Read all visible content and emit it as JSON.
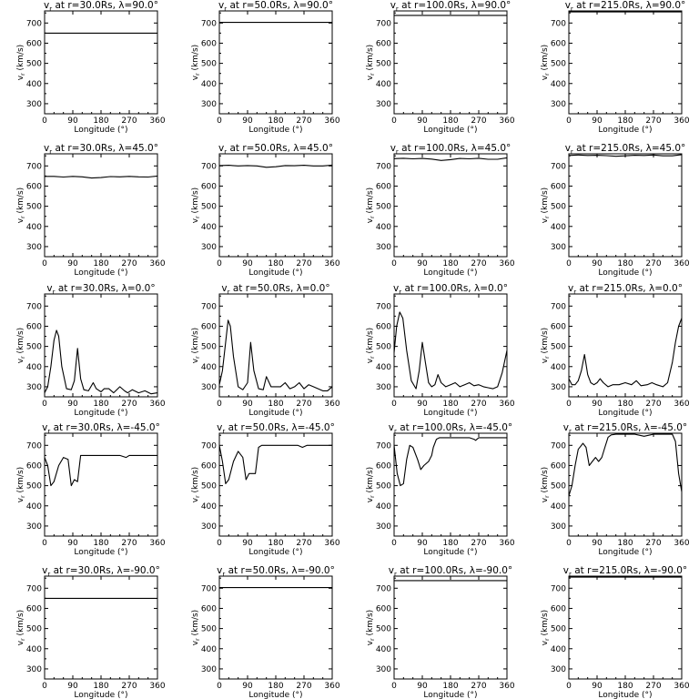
{
  "axis_common": {
    "xlabel": "Longitude (°)",
    "ylabel": "v",
    "ylabel_sub": "r",
    "ylabel_unit": " (km/s)",
    "xlim": [
      0,
      360
    ],
    "ylim": [
      250,
      760
    ],
    "xticks": [
      "0",
      "90",
      "180",
      "270",
      "360"
    ],
    "yticks": [
      "300",
      "400",
      "500",
      "600",
      "700"
    ]
  },
  "chart_data": [
    {
      "type": "line",
      "title": "v",
      "title_sub": "r",
      "title_rest": " at r=30.0Rs, λ=90.0°",
      "x": [
        0,
        360
      ],
      "series": [
        {
          "values": [
            650,
            650
          ]
        }
      ]
    },
    {
      "type": "line",
      "title": "v",
      "title_sub": "r",
      "title_rest": " at r=50.0Rs, λ=90.0°",
      "x": [
        0,
        360
      ],
      "series": [
        {
          "values": [
            703,
            703
          ]
        }
      ]
    },
    {
      "type": "line",
      "title": "v",
      "title_sub": "r",
      "title_rest": " at r=100.0Rs, λ=90.0°",
      "x": [
        0,
        360
      ],
      "series": [
        {
          "values": [
            738,
            738
          ]
        }
      ]
    },
    {
      "type": "line",
      "title": "v",
      "title_sub": "r",
      "title_rest": " at r=215.0Rs, λ=90.0°",
      "x": [
        0,
        360
      ],
      "series": [
        {
          "values": [
            755,
            755
          ]
        }
      ]
    },
    {
      "type": "line",
      "title": "v",
      "title_sub": "r",
      "title_rest": " at r=30.0Rs, λ=45.0°",
      "x": [
        0,
        30,
        60,
        90,
        120,
        150,
        180,
        210,
        240,
        270,
        300,
        330,
        360
      ],
      "series": [
        {
          "values": [
            648,
            648,
            645,
            648,
            646,
            640,
            642,
            647,
            646,
            648,
            646,
            645,
            650
          ]
        }
      ]
    },
    {
      "type": "line",
      "title": "v",
      "title_sub": "r",
      "title_rest": " at r=50.0Rs, λ=45.0°",
      "x": [
        0,
        30,
        60,
        90,
        120,
        150,
        180,
        210,
        240,
        270,
        300,
        330,
        360
      ],
      "series": [
        {
          "values": [
            702,
            703,
            700,
            702,
            700,
            693,
            696,
            702,
            701,
            703,
            700,
            700,
            704
          ]
        }
      ]
    },
    {
      "type": "line",
      "title": "v",
      "title_sub": "r",
      "title_rest": " at r=100.0Rs, λ=45.0°",
      "x": [
        0,
        30,
        60,
        90,
        120,
        150,
        180,
        210,
        240,
        270,
        300,
        330,
        360
      ],
      "series": [
        {
          "values": [
            736,
            738,
            735,
            737,
            734,
            727,
            731,
            737,
            735,
            738,
            733,
            733,
            740
          ]
        }
      ]
    },
    {
      "type": "line",
      "title": "v",
      "title_sub": "r",
      "title_rest": " at r=215.0Rs, λ=45.0°",
      "x": [
        0,
        30,
        60,
        90,
        120,
        150,
        180,
        210,
        240,
        270,
        300,
        330,
        360
      ],
      "series": [
        {
          "values": [
            752,
            754,
            752,
            753,
            751,
            748,
            750,
            753,
            752,
            754,
            750,
            750,
            756
          ]
        }
      ]
    },
    {
      "type": "line",
      "title": "v",
      "title_sub": "r",
      "title_rest": " at r=30.0Rs, λ=0.0°",
      "x": [
        0,
        10,
        20,
        30,
        38,
        45,
        55,
        70,
        85,
        95,
        105,
        115,
        125,
        140,
        155,
        165,
        180,
        190,
        205,
        220,
        240,
        255,
        265,
        280,
        300,
        320,
        340,
        360
      ],
      "series": [
        {
          "values": [
            270,
            300,
            400,
            530,
            580,
            550,
            400,
            290,
            285,
            330,
            490,
            340,
            285,
            280,
            320,
            290,
            275,
            290,
            290,
            270,
            300,
            280,
            270,
            285,
            270,
            280,
            265,
            270
          ]
        }
      ]
    },
    {
      "type": "line",
      "title": "v",
      "title_sub": "r",
      "title_rest": " at r=50.0Rs, λ=0.0°",
      "x": [
        0,
        10,
        20,
        28,
        35,
        45,
        60,
        75,
        90,
        100,
        110,
        125,
        140,
        150,
        165,
        180,
        195,
        210,
        225,
        240,
        255,
        270,
        285,
        300,
        315,
        330,
        345,
        360
      ],
      "series": [
        {
          "values": [
            310,
            380,
            520,
            630,
            600,
            450,
            300,
            285,
            320,
            520,
            380,
            290,
            285,
            350,
            300,
            300,
            300,
            320,
            290,
            300,
            320,
            290,
            310,
            300,
            290,
            280,
            280,
            300
          ]
        }
      ]
    },
    {
      "type": "line",
      "title": "v",
      "title_sub": "r",
      "title_rest": " at r=100.0Rs, λ=0.0°",
      "x": [
        0,
        8,
        18,
        28,
        40,
        55,
        70,
        80,
        90,
        100,
        110,
        120,
        130,
        140,
        150,
        165,
        180,
        195,
        210,
        225,
        240,
        255,
        270,
        285,
        300,
        315,
        330,
        345,
        360
      ],
      "series": [
        {
          "values": [
            470,
            600,
            670,
            640,
            480,
            330,
            290,
            380,
            520,
            420,
            320,
            300,
            310,
            360,
            320,
            300,
            310,
            320,
            300,
            310,
            320,
            305,
            310,
            300,
            295,
            290,
            300,
            370,
            480
          ]
        }
      ]
    },
    {
      "type": "line",
      "title": "v",
      "title_sub": "r",
      "title_rest": " at r=215.0Rs, λ=0.0°",
      "x": [
        0,
        10,
        20,
        30,
        40,
        50,
        60,
        70,
        80,
        90,
        100,
        110,
        125,
        140,
        160,
        180,
        200,
        215,
        230,
        250,
        265,
        280,
        300,
        315,
        330,
        340,
        350,
        360
      ],
      "series": [
        {
          "values": [
            340,
            310,
            310,
            330,
            380,
            460,
            360,
            320,
            310,
            320,
            340,
            320,
            300,
            310,
            310,
            320,
            310,
            330,
            305,
            310,
            320,
            310,
            300,
            320,
            420,
            520,
            600,
            640
          ]
        }
      ]
    },
    {
      "type": "line",
      "title": "v",
      "title_sub": "r",
      "title_rest": " at r=30.0Rs, λ=-45.0°",
      "x": [
        0,
        10,
        20,
        30,
        45,
        60,
        75,
        85,
        95,
        105,
        115,
        130,
        145,
        160,
        180,
        210,
        240,
        250,
        260,
        270,
        300,
        330,
        360
      ],
      "series": [
        {
          "values": [
            640,
            600,
            500,
            520,
            600,
            640,
            630,
            500,
            530,
            520,
            650,
            650,
            650,
            650,
            650,
            650,
            650,
            645,
            640,
            650,
            650,
            650,
            650
          ]
        }
      ]
    },
    {
      "type": "line",
      "title": "v",
      "title_sub": "r",
      "title_rest": " at r=50.0Rs, λ=-45.0°",
      "x": [
        0,
        10,
        20,
        30,
        45,
        60,
        75,
        85,
        95,
        105,
        115,
        125,
        135,
        145,
        160,
        180,
        210,
        230,
        250,
        265,
        280,
        300,
        330,
        360
      ],
      "series": [
        {
          "values": [
            700,
            620,
            510,
            530,
            620,
            670,
            640,
            530,
            560,
            560,
            560,
            690,
            700,
            700,
            700,
            700,
            700,
            700,
            700,
            690,
            700,
            700,
            700,
            700
          ]
        }
      ]
    },
    {
      "type": "line",
      "title": "v",
      "title_sub": "r",
      "title_rest": " at r=100.0Rs, λ=-45.0°",
      "x": [
        0,
        10,
        20,
        30,
        40,
        50,
        60,
        75,
        85,
        95,
        110,
        120,
        125,
        135,
        145,
        160,
        180,
        210,
        240,
        255,
        260,
        270,
        300,
        330,
        345,
        360
      ],
      "series": [
        {
          "values": [
            700,
            560,
            500,
            510,
            630,
            700,
            690,
            630,
            580,
            600,
            620,
            650,
            690,
            730,
            738,
            738,
            738,
            738,
            738,
            730,
            725,
            738,
            738,
            738,
            738,
            738
          ]
        }
      ]
    },
    {
      "type": "line",
      "title": "v",
      "title_sub": "r",
      "title_rest": " at r=215.0Rs, λ=-45.0°",
      "x": [
        0,
        10,
        20,
        30,
        45,
        55,
        65,
        75,
        85,
        95,
        105,
        115,
        125,
        135,
        150,
        165,
        180,
        210,
        240,
        270,
        300,
        330,
        340,
        350,
        360
      ],
      "series": [
        {
          "values": [
            450,
            500,
            600,
            680,
            710,
            690,
            600,
            620,
            640,
            620,
            640,
            690,
            740,
            752,
            755,
            755,
            755,
            755,
            745,
            755,
            755,
            755,
            720,
            560,
            470
          ]
        }
      ]
    },
    {
      "type": "line",
      "title": "v",
      "title_sub": "r",
      "title_rest": " at r=30.0Rs, λ=-90.0°",
      "x": [
        0,
        360
      ],
      "series": [
        {
          "values": [
            650,
            650
          ]
        }
      ]
    },
    {
      "type": "line",
      "title": "v",
      "title_sub": "r",
      "title_rest": " at r=50.0Rs, λ=-90.0°",
      "x": [
        0,
        360
      ],
      "series": [
        {
          "values": [
            703,
            703
          ]
        }
      ]
    },
    {
      "type": "line",
      "title": "v",
      "title_sub": "r",
      "title_rest": " at r=100.0Rs, λ=-90.0°",
      "x": [
        0,
        360
      ],
      "series": [
        {
          "values": [
            738,
            738
          ]
        }
      ]
    },
    {
      "type": "line",
      "title": "v",
      "title_sub": "r",
      "title_rest": " at r=215.0Rs, λ=-90.0°",
      "x": [
        0,
        360
      ],
      "series": [
        {
          "values": [
            755,
            755
          ]
        }
      ]
    }
  ]
}
